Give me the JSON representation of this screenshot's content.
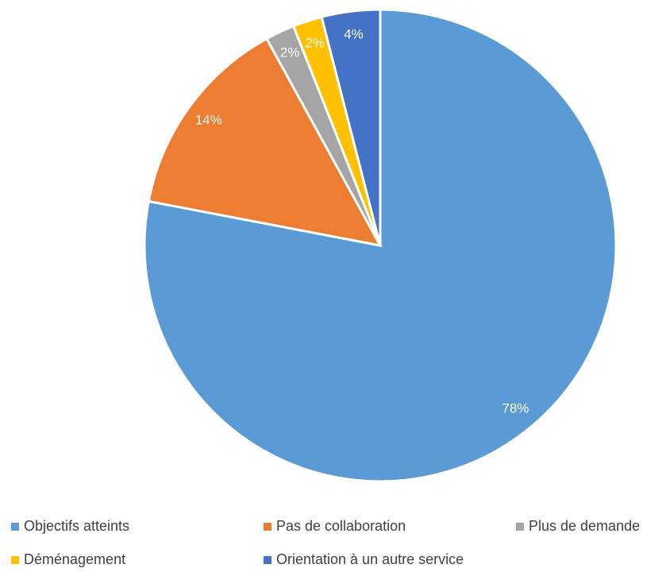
{
  "chart_data": {
    "type": "pie",
    "categories": [
      "Objectifs atteints",
      "Pas de collaboration",
      "Plus de demande",
      "Déménagement",
      "Orientation à un autre service"
    ],
    "values": [
      78,
      14,
      2,
      2,
      4
    ],
    "value_labels": [
      "78%",
      "14%",
      "2%",
      "2%",
      "4%"
    ],
    "colors": [
      "#5b9bd5",
      "#ed7d31",
      "#a5a5a5",
      "#ffc000",
      "#4472c4"
    ],
    "legend": "bottom"
  }
}
